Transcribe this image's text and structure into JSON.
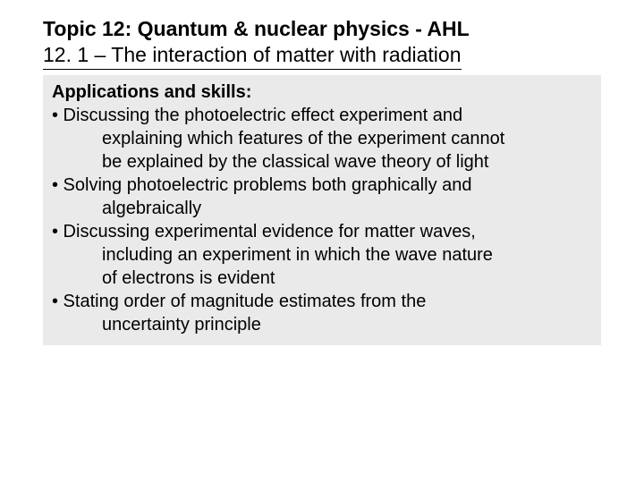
{
  "header": {
    "topic_title": "Topic 12: Quantum & nuclear physics - AHL",
    "subtitle": "12. 1 – The interaction of matter with radiation"
  },
  "content": {
    "section_heading": "Applications and skills:",
    "bullets": [
      {
        "first": "• Discussing the photoelectric effect experiment and",
        "cont": [
          "explaining which features of the experiment cannot",
          "be explained by the classical wave theory of light"
        ]
      },
      {
        "first": "• Solving photoelectric problems both graphically and",
        "cont": [
          "algebraically"
        ]
      },
      {
        "first": "• Discussing experimental evidence for matter waves,",
        "cont": [
          "including an experiment in which the wave nature",
          "of electrons is evident"
        ]
      },
      {
        "first": "• Stating order of magnitude estimates from the",
        "cont": [
          "uncertainty principle"
        ]
      }
    ]
  },
  "style": {
    "background_color": "#ffffff",
    "box_background": "#eaeaea",
    "text_color": "#000000",
    "title_fontsize": 23,
    "body_fontsize": 20
  }
}
